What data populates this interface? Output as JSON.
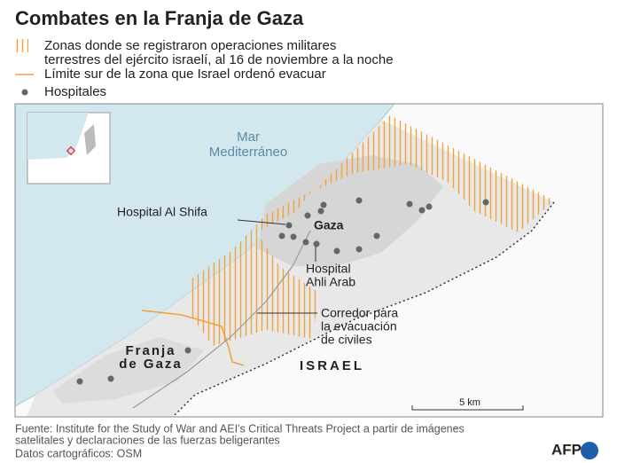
{
  "header": {
    "title": "Combates en la Franja de Gaza"
  },
  "legend": {
    "operations": [
      "Zonas donde se registraron operaciones militares",
      "terrestres del ejército israelí, al 16 de noviembre  a la noche"
    ],
    "evacuation_limit": "Límite sur de la zona que Israel ordenó evacuar",
    "hospitals": "Hospitales"
  },
  "map": {
    "sea": [
      "Mar",
      "Mediterráneo"
    ],
    "hospital_al_shifa": "Hospital Al Shifa",
    "gaza": "Gaza",
    "hospital_ahli_arab": [
      "Hospital",
      "Ahli Arab"
    ],
    "corridor": [
      "Corredor para",
      "la evacuación",
      "de civiles"
    ],
    "strip": [
      "Franja",
      "de Gaza"
    ],
    "israel": "ISRAEL",
    "scale": "5 km"
  },
  "footer": {
    "source": [
      "Fuente: Institute for the Study of War and AEI's Critical Threats Project a partir de imágenes",
      "satelitales y declaraciones de las fuerzas beligerantes"
    ],
    "credits": "Datos cartográficos: OSM",
    "logo": "AFP"
  }
}
